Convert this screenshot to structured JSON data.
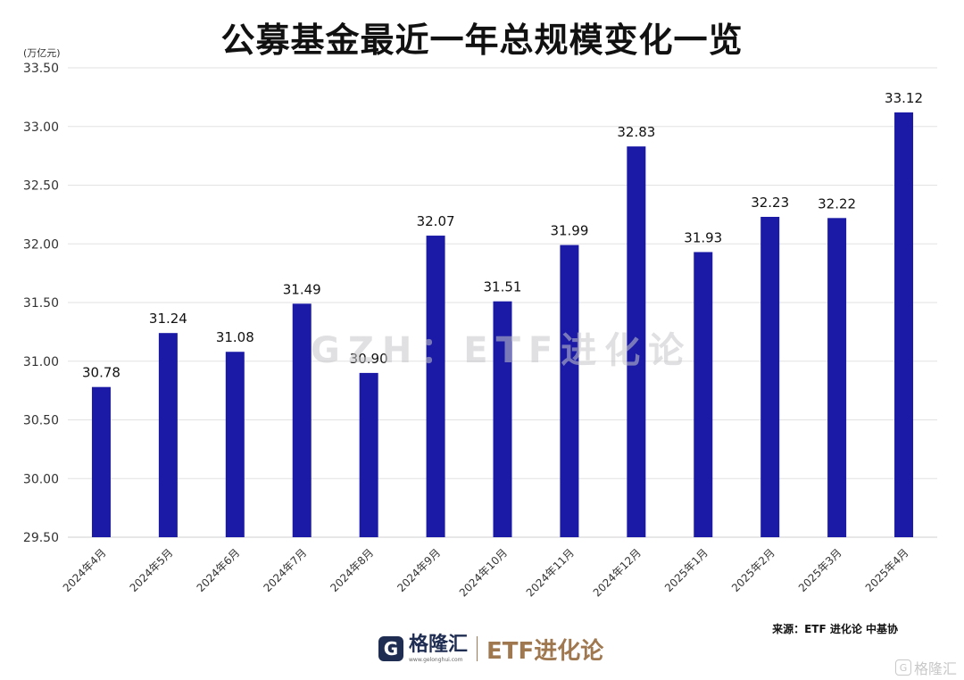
{
  "header": {
    "title": "公募基金最近一年总规模变化一览",
    "unit": "(万亿元)"
  },
  "watermark": "GZH：ETF进化论",
  "source": "来源：ETF 进化论    中基协",
  "footer": {
    "brand_mark": "G",
    "brand_name": "格隆汇",
    "brand_url": "www.gelonghui.com",
    "etf_name": "ETF进化论"
  },
  "corner": {
    "mark": "G",
    "name": "格隆汇"
  },
  "colors": {
    "bar": "#1a1aa6",
    "grid": "#e2e2e2",
    "axis_text": "#333333",
    "label_text": "#111111"
  },
  "chart_data": {
    "type": "bar",
    "title": "公募基金最近一年总规模变化一览",
    "ylabel": "(万亿元)",
    "xlabel": "",
    "categories": [
      "2024年4月",
      "2024年5月",
      "2024年6月",
      "2024年7月",
      "2024年8月",
      "2024年9月",
      "2024年10月",
      "2024年11月",
      "2024年12月",
      "2025年1月",
      "2025年2月",
      "2025年3月",
      "2025年4月"
    ],
    "values": [
      30.78,
      31.24,
      31.08,
      31.49,
      30.9,
      32.07,
      31.51,
      31.99,
      32.83,
      31.93,
      32.23,
      32.22,
      33.12
    ],
    "value_labels": [
      "30.78",
      "31.24",
      "31.08",
      "31.49",
      "30.90",
      "32.07",
      "31.51",
      "31.99",
      "32.83",
      "31.93",
      "32.23",
      "32.22",
      "33.12"
    ],
    "ylim": [
      29.5,
      33.5
    ],
    "yticks": [
      "29.50",
      "30.00",
      "30.50",
      "31.00",
      "31.50",
      "32.00",
      "32.50",
      "33.00",
      "33.50"
    ],
    "grid": true,
    "legend": "none"
  }
}
